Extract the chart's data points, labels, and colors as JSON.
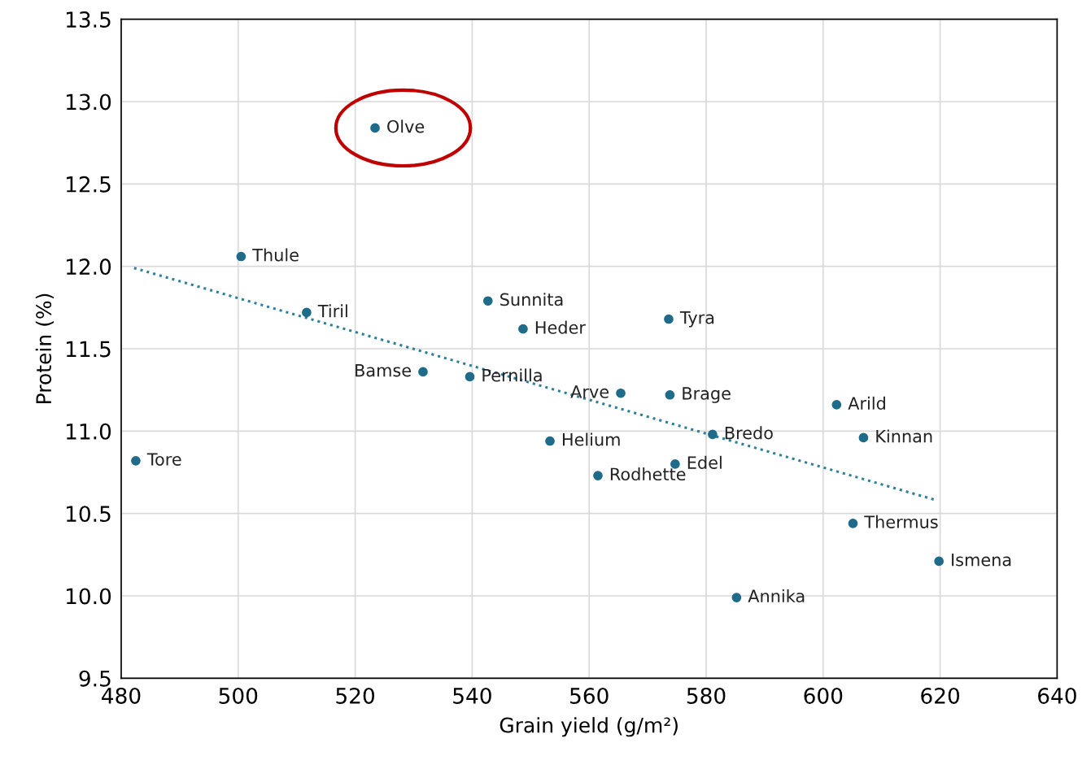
{
  "chart_data": {
    "type": "scatter",
    "xlabel": "Grain yield (g/m²)",
    "ylabel": "Protein (%)",
    "xlim": [
      480,
      640
    ],
    "xticks": [
      480,
      500,
      520,
      540,
      560,
      580,
      600,
      620,
      640
    ],
    "ylim": [
      9.5,
      13.5
    ],
    "yticks": [
      {
        "value": 9.5,
        "label": "9.5"
      },
      {
        "value": 10.0,
        "label": "10.0"
      },
      {
        "value": 10.5,
        "label": "10.5"
      },
      {
        "value": 11.0,
        "label": "11.0"
      },
      {
        "value": 11.5,
        "label": "11.5"
      },
      {
        "value": 12.0,
        "label": "12.0"
      },
      {
        "value": 12.5,
        "label": "12.5"
      },
      {
        "value": 13.0,
        "label": "13.0"
      },
      {
        "value": 13.5,
        "label": "13.5"
      }
    ],
    "grid": true,
    "marker": "circle",
    "series": [
      {
        "color": "#1f6b8a",
        "x": [
          523.4,
          500.5,
          511.7,
          542.7,
          548.7,
          573.6,
          531.6,
          539.6,
          565.4,
          573.8,
          602.3,
          606.9,
          581.1,
          553.3,
          482.5,
          561.5,
          574.7,
          605.1,
          619.8,
          585.2
        ],
        "values": [
          12.84,
          12.06,
          11.72,
          11.79,
          11.62,
          11.68,
          11.36,
          11.33,
          11.23,
          11.22,
          11.16,
          10.96,
          10.98,
          10.94,
          10.82,
          10.73,
          10.8,
          10.44,
          10.21,
          9.99
        ]
      },
      {
        "type": "line",
        "color": "#2a7f9a",
        "line_style": "dotted",
        "marker": "none",
        "x": [
          482.2,
          619.4
        ],
        "values": [
          11.99,
          10.58
        ]
      }
    ],
    "annotations": [
      {
        "text": "Olve",
        "x": 523.4,
        "y": 12.84
      },
      {
        "text": "Thule",
        "x": 500.5,
        "y": 12.06
      },
      {
        "text": "Tiril",
        "x": 511.7,
        "y": 11.72
      },
      {
        "text": "Sunnita",
        "x": 542.7,
        "y": 11.79
      },
      {
        "text": "Heder",
        "x": 548.7,
        "y": 11.62
      },
      {
        "text": "Tyra",
        "x": 573.6,
        "y": 11.68
      },
      {
        "text": "Bamse",
        "x": 531.6,
        "y": 11.36
      },
      {
        "text": "Pernilla",
        "x": 539.6,
        "y": 11.33
      },
      {
        "text": "Arve",
        "x": 565.4,
        "y": 11.23
      },
      {
        "text": "Brage",
        "x": 573.8,
        "y": 11.22
      },
      {
        "text": "Arild",
        "x": 602.3,
        "y": 11.16
      },
      {
        "text": "Kinnan",
        "x": 606.9,
        "y": 10.96
      },
      {
        "text": "Bredo",
        "x": 581.1,
        "y": 10.98
      },
      {
        "text": "Helium",
        "x": 553.3,
        "y": 10.94
      },
      {
        "text": "Tore",
        "x": 482.5,
        "y": 10.82
      },
      {
        "text": "Rodhette",
        "x": 561.5,
        "y": 10.73
      },
      {
        "text": "Edel",
        "x": 574.7,
        "y": 10.8
      },
      {
        "text": "Thermus",
        "x": 605.1,
        "y": 10.44
      },
      {
        "text": "Ismena",
        "x": 619.8,
        "y": 10.21
      },
      {
        "text": "Annika",
        "x": 585.2,
        "y": 9.99
      }
    ]
  }
}
